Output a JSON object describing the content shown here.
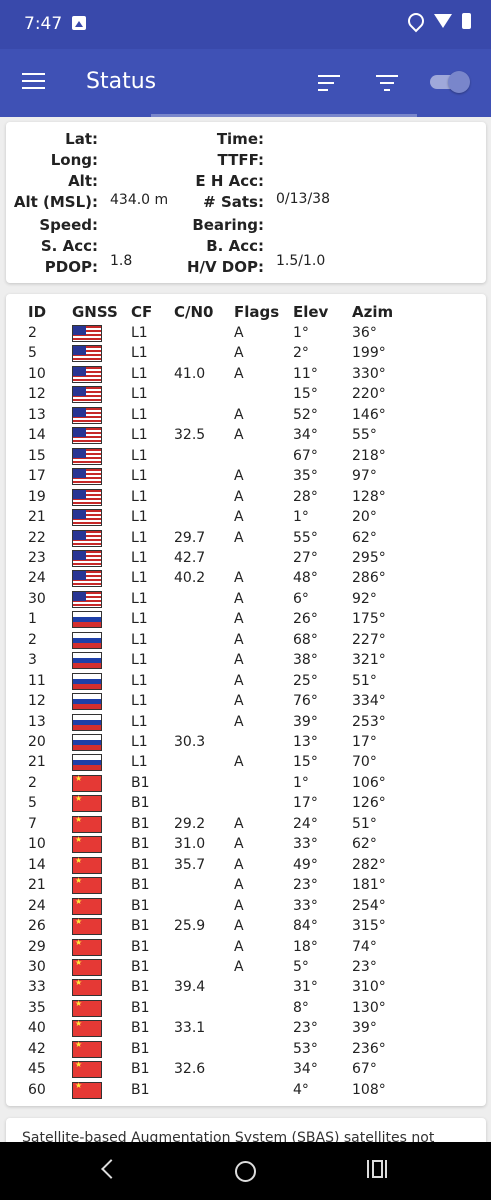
{
  "status_bar": {
    "time": "7:47",
    "icons": [
      "image-icon",
      "location-icon",
      "wifi-icon",
      "battery-icon"
    ]
  },
  "app_bar": {
    "title": "Status",
    "icons": [
      "menu-icon",
      "sort-icon",
      "filter-icon",
      "toggle-switch"
    ],
    "toggle_on": true
  },
  "info": {
    "labels": {
      "lat": "Lat:",
      "long": "Long:",
      "alt": "Alt:",
      "alt_msl": "Alt (MSL):",
      "speed": "Speed:",
      "s_acc": "S. Acc:",
      "pdop": "PDOP:",
      "time": "Time:",
      "ttff": "TTFF:",
      "eh_acc": "E H Acc:",
      "sats": "# Sats:",
      "bearing": "Bearing:",
      "b_acc": "B. Acc:",
      "hv_dop": "H/V DOP:"
    },
    "values": {
      "alt_msl": "434.0 m",
      "pdop": "1.8",
      "sats": "0/13/38",
      "hv_dop": "1.5/1.0"
    }
  },
  "satellites": {
    "headers": {
      "id": "ID",
      "gnss": "GNSS",
      "cf": "CF",
      "cn0": "C/N0",
      "flags": "Flags",
      "elev": "Elev",
      "azim": "Azim"
    },
    "rows": [
      {
        "id": "2",
        "gnss": "us",
        "cf": "L1",
        "cn0": "",
        "flags": "A",
        "elev": "1°",
        "azim": "36°"
      },
      {
        "id": "5",
        "gnss": "us",
        "cf": "L1",
        "cn0": "",
        "flags": "A",
        "elev": "2°",
        "azim": "199°"
      },
      {
        "id": "10",
        "gnss": "us",
        "cf": "L1",
        "cn0": "41.0",
        "flags": "A",
        "elev": "11°",
        "azim": "330°"
      },
      {
        "id": "12",
        "gnss": "us",
        "cf": "L1",
        "cn0": "",
        "flags": "",
        "elev": "15°",
        "azim": "220°"
      },
      {
        "id": "13",
        "gnss": "us",
        "cf": "L1",
        "cn0": "",
        "flags": "A",
        "elev": "52°",
        "azim": "146°"
      },
      {
        "id": "14",
        "gnss": "us",
        "cf": "L1",
        "cn0": "32.5",
        "flags": "A",
        "elev": "34°",
        "azim": "55°"
      },
      {
        "id": "15",
        "gnss": "us",
        "cf": "L1",
        "cn0": "",
        "flags": "",
        "elev": "67°",
        "azim": "218°"
      },
      {
        "id": "17",
        "gnss": "us",
        "cf": "L1",
        "cn0": "",
        "flags": "A",
        "elev": "35°",
        "azim": "97°"
      },
      {
        "id": "19",
        "gnss": "us",
        "cf": "L1",
        "cn0": "",
        "flags": "A",
        "elev": "28°",
        "azim": "128°"
      },
      {
        "id": "21",
        "gnss": "us",
        "cf": "L1",
        "cn0": "",
        "flags": "A",
        "elev": "1°",
        "azim": "20°"
      },
      {
        "id": "22",
        "gnss": "us",
        "cf": "L1",
        "cn0": "29.7",
        "flags": "A",
        "elev": "55°",
        "azim": "62°"
      },
      {
        "id": "23",
        "gnss": "us",
        "cf": "L1",
        "cn0": "42.7",
        "flags": "",
        "elev": "27°",
        "azim": "295°"
      },
      {
        "id": "24",
        "gnss": "us",
        "cf": "L1",
        "cn0": "40.2",
        "flags": "A",
        "elev": "48°",
        "azim": "286°"
      },
      {
        "id": "30",
        "gnss": "us",
        "cf": "L1",
        "cn0": "",
        "flags": "A",
        "elev": "6°",
        "azim": "92°"
      },
      {
        "id": "1",
        "gnss": "ru",
        "cf": "L1",
        "cn0": "",
        "flags": "A",
        "elev": "26°",
        "azim": "175°"
      },
      {
        "id": "2",
        "gnss": "ru",
        "cf": "L1",
        "cn0": "",
        "flags": "A",
        "elev": "68°",
        "azim": "227°"
      },
      {
        "id": "3",
        "gnss": "ru",
        "cf": "L1",
        "cn0": "",
        "flags": "A",
        "elev": "38°",
        "azim": "321°"
      },
      {
        "id": "11",
        "gnss": "ru",
        "cf": "L1",
        "cn0": "",
        "flags": "A",
        "elev": "25°",
        "azim": "51°"
      },
      {
        "id": "12",
        "gnss": "ru",
        "cf": "L1",
        "cn0": "",
        "flags": "A",
        "elev": "76°",
        "azim": "334°"
      },
      {
        "id": "13",
        "gnss": "ru",
        "cf": "L1",
        "cn0": "",
        "flags": "A",
        "elev": "39°",
        "azim": "253°"
      },
      {
        "id": "20",
        "gnss": "ru",
        "cf": "L1",
        "cn0": "30.3",
        "flags": "",
        "elev": "13°",
        "azim": "17°"
      },
      {
        "id": "21",
        "gnss": "ru",
        "cf": "L1",
        "cn0": "",
        "flags": "A",
        "elev": "15°",
        "azim": "70°"
      },
      {
        "id": "2",
        "gnss": "cn",
        "cf": "B1",
        "cn0": "",
        "flags": "",
        "elev": "1°",
        "azim": "106°"
      },
      {
        "id": "5",
        "gnss": "cn",
        "cf": "B1",
        "cn0": "",
        "flags": "",
        "elev": "17°",
        "azim": "126°"
      },
      {
        "id": "7",
        "gnss": "cn",
        "cf": "B1",
        "cn0": "29.2",
        "flags": "A",
        "elev": "24°",
        "azim": "51°"
      },
      {
        "id": "10",
        "gnss": "cn",
        "cf": "B1",
        "cn0": "31.0",
        "flags": "A",
        "elev": "33°",
        "azim": "62°"
      },
      {
        "id": "14",
        "gnss": "cn",
        "cf": "B1",
        "cn0": "35.7",
        "flags": "A",
        "elev": "49°",
        "azim": "282°"
      },
      {
        "id": "21",
        "gnss": "cn",
        "cf": "B1",
        "cn0": "",
        "flags": "A",
        "elev": "23°",
        "azim": "181°"
      },
      {
        "id": "24",
        "gnss": "cn",
        "cf": "B1",
        "cn0": "",
        "flags": "A",
        "elev": "33°",
        "azim": "254°"
      },
      {
        "id": "26",
        "gnss": "cn",
        "cf": "B1",
        "cn0": "25.9",
        "flags": "A",
        "elev": "84°",
        "azim": "315°"
      },
      {
        "id": "29",
        "gnss": "cn",
        "cf": "B1",
        "cn0": "",
        "flags": "A",
        "elev": "18°",
        "azim": "74°"
      },
      {
        "id": "30",
        "gnss": "cn",
        "cf": "B1",
        "cn0": "",
        "flags": "A",
        "elev": "5°",
        "azim": "23°"
      },
      {
        "id": "33",
        "gnss": "cn",
        "cf": "B1",
        "cn0": "39.4",
        "flags": "",
        "elev": "31°",
        "azim": "310°"
      },
      {
        "id": "35",
        "gnss": "cn",
        "cf": "B1",
        "cn0": "",
        "flags": "",
        "elev": "8°",
        "azim": "130°"
      },
      {
        "id": "40",
        "gnss": "cn",
        "cf": "B1",
        "cn0": "33.1",
        "flags": "",
        "elev": "23°",
        "azim": "39°"
      },
      {
        "id": "42",
        "gnss": "cn",
        "cf": "B1",
        "cn0": "",
        "flags": "",
        "elev": "53°",
        "azim": "236°"
      },
      {
        "id": "45",
        "gnss": "cn",
        "cf": "B1",
        "cn0": "32.6",
        "flags": "",
        "elev": "34°",
        "azim": "67°"
      },
      {
        "id": "60",
        "gnss": "cn",
        "cf": "B1",
        "cn0": "",
        "flags": "",
        "elev": "4°",
        "azim": "108°"
      }
    ]
  },
  "sbas": {
    "text": "Satellite-based Augmentation System (SBAS) satellites not"
  },
  "nav_bar": {
    "icons": [
      "back-icon",
      "home-icon",
      "recents-icon"
    ]
  }
}
